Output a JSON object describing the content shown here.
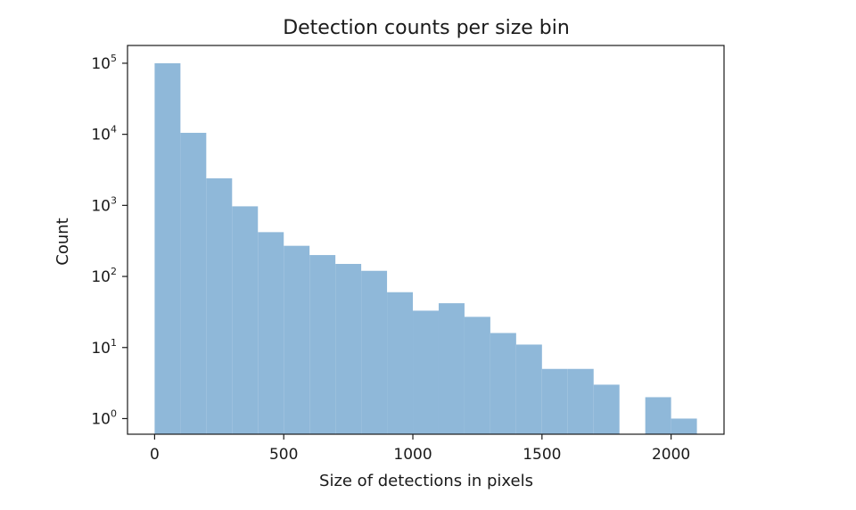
{
  "chart_data": {
    "type": "bar",
    "title": "Detection counts per size bin",
    "xlabel": "Size of detections in pixels",
    "ylabel": "Count",
    "yscale": "log",
    "bin_width": 100,
    "bins": [
      {
        "x0": 0,
        "x1": 100,
        "count": 100000
      },
      {
        "x0": 100,
        "x1": 200,
        "count": 10500
      },
      {
        "x0": 200,
        "x1": 300,
        "count": 2400
      },
      {
        "x0": 300,
        "x1": 400,
        "count": 970
      },
      {
        "x0": 400,
        "x1": 500,
        "count": 420
      },
      {
        "x0": 500,
        "x1": 600,
        "count": 270
      },
      {
        "x0": 600,
        "x1": 700,
        "count": 200
      },
      {
        "x0": 700,
        "x1": 800,
        "count": 150
      },
      {
        "x0": 800,
        "x1": 900,
        "count": 120
      },
      {
        "x0": 900,
        "x1": 1000,
        "count": 60
      },
      {
        "x0": 1000,
        "x1": 1100,
        "count": 33
      },
      {
        "x0": 1100,
        "x1": 1200,
        "count": 42
      },
      {
        "x0": 1200,
        "x1": 1300,
        "count": 27
      },
      {
        "x0": 1300,
        "x1": 1400,
        "count": 16
      },
      {
        "x0": 1400,
        "x1": 1500,
        "count": 11
      },
      {
        "x0": 1500,
        "x1": 1600,
        "count": 5
      },
      {
        "x0": 1600,
        "x1": 1700,
        "count": 5
      },
      {
        "x0": 1700,
        "x1": 1800,
        "count": 3
      },
      {
        "x0": 1800,
        "x1": 1900,
        "count": 0
      },
      {
        "x0": 1900,
        "x1": 2000,
        "count": 2
      },
      {
        "x0": 2000,
        "x1": 2100,
        "count": 1
      }
    ],
    "xlim": [
      -105,
      2205
    ],
    "ylim_log10": [
      -0.22,
      5.25
    ],
    "xticks": [
      0,
      500,
      1000,
      1500,
      2000
    ],
    "xtick_labels": [
      "0",
      "500",
      "1000",
      "1500",
      "2000"
    ],
    "ytick_exponents": [
      0,
      1,
      2,
      3,
      4,
      5
    ],
    "ytick_base": "10",
    "ytick_exponent_labels": [
      "0",
      "1",
      "2",
      "3",
      "4",
      "5"
    ],
    "bar_color": "#8fb8d9",
    "grid": false,
    "legend": false
  }
}
